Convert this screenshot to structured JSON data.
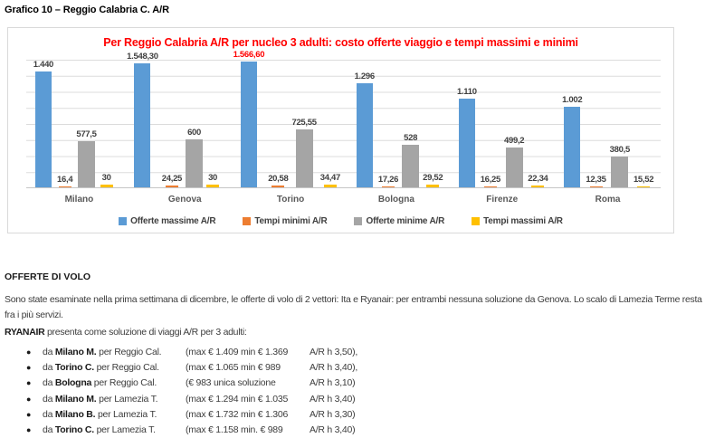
{
  "page": {
    "title": "Grafico 10 – Reggio Calabria C. A/R"
  },
  "chart_data": {
    "type": "bar",
    "title": "Per Reggio Calabria A/R per nucleo 3 adulti: costo offerte viaggio e tempi massimi e minimi",
    "title_color": "#ff0000",
    "categories": [
      "Milano",
      "Genova",
      "Torino",
      "Bologna",
      "Firenze",
      "Roma"
    ],
    "series": [
      {
        "name": "Offerte massime A/R",
        "color": "#5B9BD5",
        "values": [
          1440,
          1548.3,
          1566.6,
          1296,
          1110,
          1002
        ],
        "labels": [
          "1.440",
          "1.548,30",
          "1.566,60",
          "1.296",
          "1.110",
          "1.002"
        ],
        "label_colors": [
          "#404040",
          "#404040",
          "#ff0000",
          "#404040",
          "#404040",
          "#404040"
        ]
      },
      {
        "name": "Tempi minimi A/R",
        "color": "#ED7D31",
        "values": [
          16.4,
          24.25,
          20.58,
          17.26,
          16.25,
          12.35
        ],
        "labels": [
          "16,4",
          "24,25",
          "20,58",
          "17,26",
          "16,25",
          "12,35"
        ]
      },
      {
        "name": "Offerte minime A/R",
        "color": "#A5A5A5",
        "values": [
          577.5,
          600,
          725.55,
          528,
          499.2,
          380.5
        ],
        "labels": [
          "577,5",
          "600",
          "725,55",
          "528",
          "499,2",
          "380,5"
        ]
      },
      {
        "name": "Tempi massimi A/R",
        "color": "#FFC000",
        "values": [
          30,
          30,
          34.47,
          29.52,
          22.34,
          15.52
        ],
        "labels": [
          "30",
          "30",
          "34,47",
          "29,52",
          "22,34",
          "15,52"
        ]
      }
    ],
    "ylim": [
      0,
      1600
    ],
    "gridline_step": 200,
    "grid": true,
    "y_axis_labels_visible": false,
    "legend_position": "bottom"
  },
  "sections": {
    "heading": "OFFERTE DI VOLO",
    "paragraph": "Sono state esaminate nella prima settimana di dicembre, le offerte di volo di 2 vettori: Ita e Ryanair: per entrambi nessuna soluzione da Genova. Lo scalo di Lamezia Terme resta fra i più servizi.",
    "ryanair_bold": "RYANAIR",
    "ryanair_rest": " presenta come soluzione di viaggi A/R per 3 adulti:",
    "bullet_glyph": "●",
    "bullets": [
      {
        "prefix": "da ",
        "city": "Milano M.",
        "rest": " per Reggio Cal.",
        "prices": "(max € 1.409  min € 1.369",
        "time": "A/R h 3,50),"
      },
      {
        "prefix": "da ",
        "city": "Torino C.",
        "rest": " per Reggio Cal.",
        "prices": "(max € 1.065 min € 989",
        "time": "A/R h 3,40),"
      },
      {
        "prefix": "da ",
        "city": "Bologna",
        "rest": " per Reggio Cal.",
        "prices": "(€ 983 unica soluzione",
        "time": "A/R h 3,10)"
      },
      {
        "prefix": "da ",
        "city": "Milano M.",
        "rest": " per Lamezia T.",
        "prices": "(max € 1.294 min € 1.035",
        "time": "A/R h 3,40)"
      },
      {
        "prefix": "da ",
        "city": "Milano B.",
        "rest": " per Lamezia T.",
        "prices": "(max € 1.732 min € 1.306",
        "time": "A/R h 3,30)"
      },
      {
        "prefix": "da ",
        "city": "Torino C.",
        "rest": " per Lamezia T.",
        "prices": "(max € 1.158 min. € 989",
        "time": "A/R h 3,40)"
      }
    ]
  }
}
